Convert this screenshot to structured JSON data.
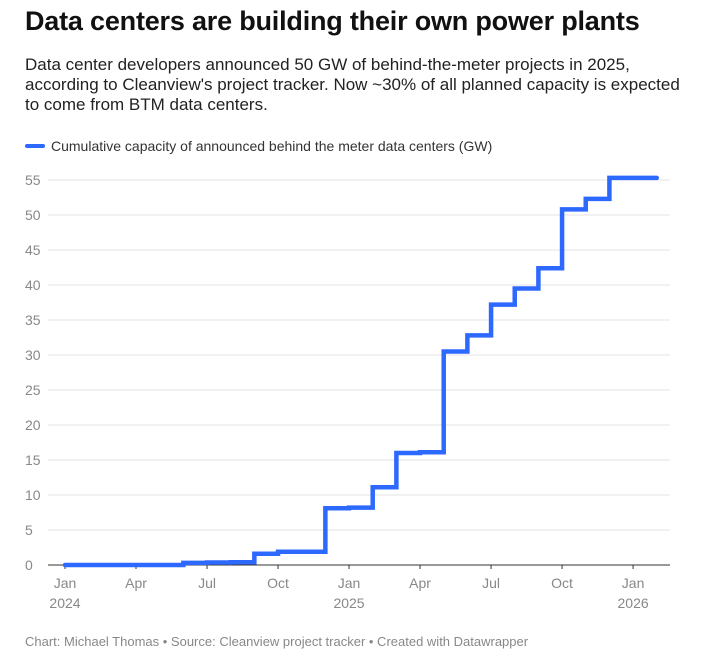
{
  "title": "Data centers are building their own power plants",
  "subtitle": "Data center developers announced 50 GW of behind-the-meter projects in 2025, according to Cleanview's project tracker. Now ~30% of all planned capacity is expected to come from BTM data centers.",
  "footer": "Chart: Michael Thomas • Source: Cleanview project tracker • Created with Datawrapper",
  "chart_data": {
    "type": "line",
    "step": "after",
    "legend": "Cumulative capacity of announced behind the meter data centers (GW)",
    "legend_position": "top-left",
    "color": "#2e69ff",
    "ylim": [
      0,
      55
    ],
    "yticks": [
      0,
      5,
      10,
      15,
      20,
      25,
      30,
      35,
      40,
      45,
      50,
      55
    ],
    "grid": true,
    "x_start": "2024-01",
    "x_months": [
      "2024-01",
      "2024-02",
      "2024-03",
      "2024-04",
      "2024-05",
      "2024-06",
      "2024-07",
      "2024-08",
      "2024-09",
      "2024-10",
      "2024-11",
      "2024-12",
      "2025-01",
      "2025-02",
      "2025-03",
      "2025-04",
      "2025-05",
      "2025-06",
      "2025-07",
      "2025-08",
      "2025-09",
      "2025-10",
      "2025-11",
      "2025-12",
      "2026-01",
      "2026-02"
    ],
    "values": [
      0,
      0,
      0,
      0,
      0,
      0.3,
      0.35,
      0.4,
      1.6,
      1.9,
      1.9,
      8.1,
      8.2,
      11.1,
      16.0,
      16.1,
      30.5,
      32.8,
      37.2,
      39.5,
      42.4,
      50.8,
      52.3,
      55.3,
      55.3,
      55.3
    ],
    "xticks": [
      {
        "month": 0,
        "label": "Jan",
        "year": "2024"
      },
      {
        "month": 3,
        "label": "Apr",
        "year": ""
      },
      {
        "month": 6,
        "label": "Jul",
        "year": ""
      },
      {
        "month": 9,
        "label": "Oct",
        "year": ""
      },
      {
        "month": 12,
        "label": "Jan",
        "year": "2025"
      },
      {
        "month": 15,
        "label": "Apr",
        "year": ""
      },
      {
        "month": 18,
        "label": "Jul",
        "year": ""
      },
      {
        "month": 21,
        "label": "Oct",
        "year": ""
      },
      {
        "month": 24,
        "label": "Jan",
        "year": "2026"
      }
    ]
  }
}
